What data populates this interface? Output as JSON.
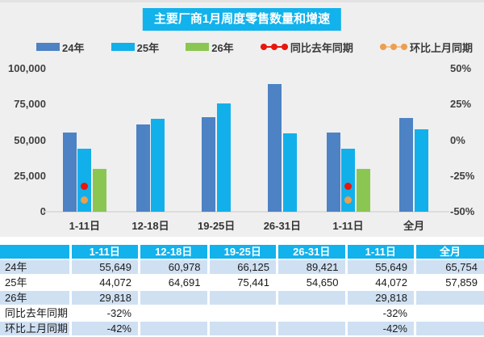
{
  "chart_data": {
    "type": "bar",
    "title": "主要厂商1月周度零售数量和增速",
    "categories": [
      "1-11日",
      "12-18日",
      "19-25日",
      "26-31日",
      "1-11日",
      "全月"
    ],
    "bar_series": [
      {
        "name": "24年",
        "color": "#4d82c4",
        "values": [
          55649,
          60978,
          66125,
          89421,
          55649,
          65754
        ]
      },
      {
        "name": "25年",
        "color": "#12b0ea",
        "values": [
          44072,
          64691,
          75441,
          54650,
          44072,
          57859
        ]
      },
      {
        "name": "26年",
        "color": "#8cc652",
        "values": [
          29818,
          null,
          null,
          null,
          29818,
          null
        ]
      }
    ],
    "marker_series": [
      {
        "name": "同比去年同期",
        "color": "#e8160c",
        "line_color": "#e8160c",
        "values": [
          -32,
          null,
          null,
          null,
          -32,
          null
        ]
      },
      {
        "name": "环比上月同期",
        "color": "#ec9f4f",
        "line_color": "#f5c294",
        "values": [
          -42,
          null,
          null,
          null,
          -42,
          null
        ]
      }
    ],
    "left_axis": {
      "ticks": [
        "100,000",
        "75,000",
        "50,000",
        "25,000",
        "0"
      ],
      "min": 0,
      "max": 100000
    },
    "right_axis": {
      "ticks": [
        "50%",
        "25%",
        "0%",
        "-25%",
        "-50%"
      ],
      "min": -50,
      "max": 50
    },
    "grid": "off",
    "legend_position": "top"
  },
  "table": {
    "header": [
      "",
      "1-11日",
      "12-18日",
      "19-25日",
      "26-31日",
      "1-11日",
      "全月"
    ],
    "rows": [
      {
        "label": "24年",
        "values": [
          "55,649",
          "60,978",
          "66,125",
          "89,421",
          "55,649",
          "65,754"
        ]
      },
      {
        "label": "25年",
        "values": [
          "44,072",
          "64,691",
          "75,441",
          "54,650",
          "44,072",
          "57,859"
        ]
      },
      {
        "label": "26年",
        "values": [
          "29,818",
          "",
          "",
          "",
          "29,818",
          ""
        ]
      },
      {
        "label": "同比去年同期",
        "values": [
          "-32%",
          "",
          "",
          "",
          "-32%",
          ""
        ]
      },
      {
        "label": "环比上月同期",
        "values": [
          "-42%",
          "",
          "",
          "",
          "-42%",
          ""
        ]
      }
    ]
  },
  "colors": {
    "accent": "#12b2ec",
    "bar_24": "#4d82c4",
    "bar_25": "#12b0ea",
    "bar_26": "#8cc652",
    "yoy_marker": "#e8160c",
    "mom_marker": "#ec9f4f",
    "section_bg": "#efefef",
    "row_alt": "#cfe0f2",
    "baseline": "#dcdcdc"
  }
}
